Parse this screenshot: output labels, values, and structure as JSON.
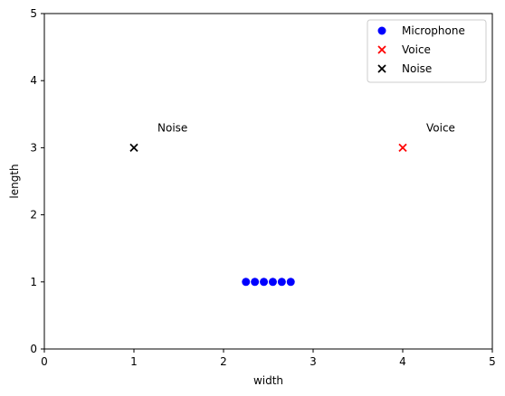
{
  "chart_data": {
    "type": "scatter",
    "xlabel": "width",
    "ylabel": "length",
    "xlim": [
      0,
      5
    ],
    "ylim": [
      0,
      5
    ],
    "xticks": [
      "0",
      "1",
      "2",
      "3",
      "4",
      "5"
    ],
    "yticks": [
      "0",
      "1",
      "2",
      "3",
      "4",
      "5"
    ],
    "grid": false,
    "legend_position": "top-right",
    "series": [
      {
        "name": "Microphone",
        "marker": "circle",
        "color": "#0000ff",
        "points": [
          {
            "x": 2.25,
            "y": 1
          },
          {
            "x": 2.35,
            "y": 1
          },
          {
            "x": 2.45,
            "y": 1
          },
          {
            "x": 2.55,
            "y": 1
          },
          {
            "x": 2.65,
            "y": 1
          },
          {
            "x": 2.75,
            "y": 1
          }
        ]
      },
      {
        "name": "Voice",
        "marker": "x",
        "color": "#ff0000",
        "points": [
          {
            "x": 4,
            "y": 3
          }
        ]
      },
      {
        "name": "Noise",
        "marker": "x",
        "color": "#000000",
        "points": [
          {
            "x": 1,
            "y": 3
          }
        ]
      }
    ],
    "annotations": [
      {
        "text": "Noise",
        "x": 1,
        "y": 3
      },
      {
        "text": "Voice",
        "x": 4,
        "y": 3
      }
    ]
  }
}
